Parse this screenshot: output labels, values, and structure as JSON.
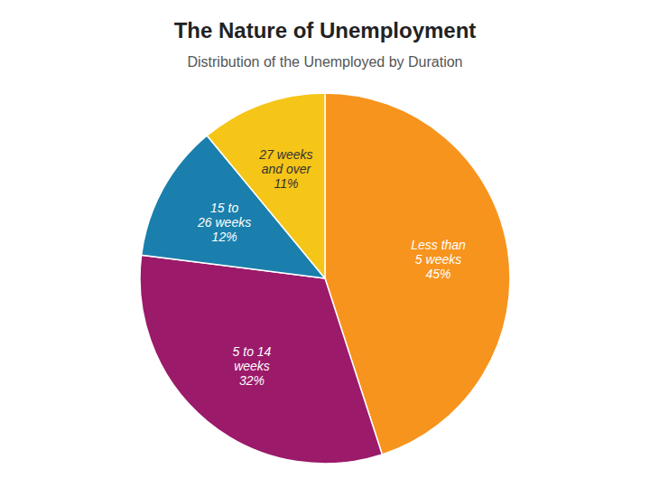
{
  "chart_data": {
    "type": "pie",
    "title": "The Nature of Unemployment",
    "subtitle": "Distribution of the Unemployed by Duration",
    "categories": [
      "Less than\n5 weeks",
      "5 to 14\nweeks",
      "15 to\n26 weeks",
      "27 weeks\nand over"
    ],
    "values": [
      45,
      32,
      12,
      11
    ],
    "value_labels": [
      "45%",
      "32%",
      "12%",
      "11%"
    ],
    "colors": [
      "#F7941D",
      "#9B1A6A",
      "#1A7FAD",
      "#F5C518"
    ],
    "data_labels": true
  }
}
